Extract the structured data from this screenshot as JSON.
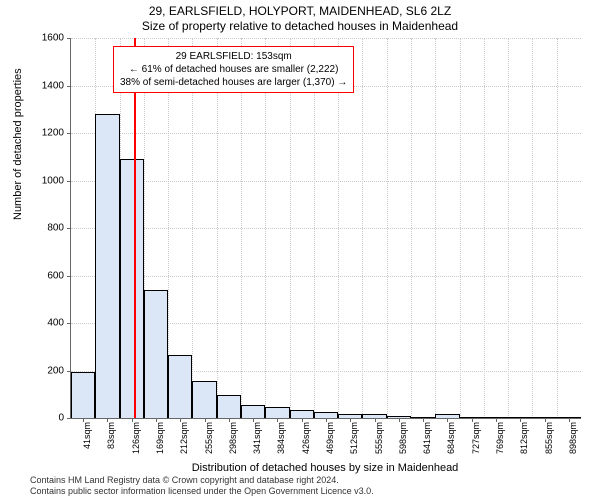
{
  "title1": "29, EARLSFIELD, HOLYPORT, MAIDENHEAD, SL6 2LZ",
  "title2": "Size of property relative to detached houses in Maidenhead",
  "ylabel": "Number of detached properties",
  "xlabel": "Distribution of detached houses by size in Maidenhead",
  "chart": {
    "type": "histogram",
    "ylim": [
      0,
      1600
    ],
    "ytick_step": 200,
    "xticks": [
      "41sqm",
      "83sqm",
      "126sqm",
      "169sqm",
      "212sqm",
      "255sqm",
      "298sqm",
      "341sqm",
      "384sqm",
      "426sqm",
      "469sqm",
      "512sqm",
      "555sqm",
      "598sqm",
      "641sqm",
      "684sqm",
      "727sqm",
      "769sqm",
      "812sqm",
      "855sqm",
      "898sqm"
    ],
    "values": [
      195,
      1280,
      1090,
      540,
      265,
      155,
      95,
      55,
      45,
      35,
      25,
      18,
      15,
      10,
      5,
      18,
      3,
      3,
      2,
      2,
      2
    ],
    "bar_fill": "#dbe7f6",
    "bar_stroke": "#000000",
    "grid_color": "#cccccc",
    "background": "#ffffff",
    "reference_line": {
      "color": "#ff0000",
      "position_index": 2.6
    }
  },
  "annotation": {
    "line1": "29 EARLSFIELD: 153sqm",
    "line2": "← 61% of detached houses are smaller (2,222)",
    "line3": "38% of semi-detached houses are larger (1,370) →",
    "border_color": "#ff0000"
  },
  "footer": {
    "line1": "Contains HM Land Registry data © Crown copyright and database right 2024.",
    "line2": "Contains public sector information licensed under the Open Government Licence v3.0."
  }
}
